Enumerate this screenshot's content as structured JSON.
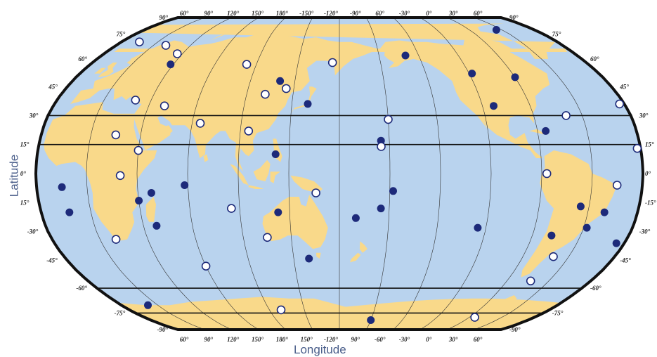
{
  "axes": {
    "xlabel": "Longitude",
    "ylabel": "Latitude",
    "top_ticks": [
      "60°",
      "90°",
      "120°",
      "150°",
      "180°",
      "-150°",
      "-120°",
      "-90°",
      "60°",
      "-30°",
      "0°",
      "30°",
      "60°"
    ],
    "bottom_ticks": [
      "60°",
      "90°",
      "120°",
      "150°",
      "180°",
      "150°",
      "-120°",
      "90°",
      "-60°",
      "-30°",
      "0°",
      "30°",
      "60°"
    ],
    "left_ticks": [
      "90°",
      "75°",
      "60°",
      "45°",
      "30°",
      "15°",
      "0°",
      "15°",
      "-30°",
      "-45°",
      "-60°",
      "-75°",
      "-90°"
    ],
    "right_ticks": [
      "90°",
      "75°",
      "60°",
      "45°",
      "30°",
      "15°",
      "0°",
      "-15°",
      "-30°",
      "-45°",
      "-60°",
      "-75°",
      "-90°"
    ]
  },
  "colors": {
    "ocean": "#b9d3ee",
    "land": "#f9d98a",
    "border": "#111111",
    "filled_marker": "#1d2a7a",
    "open_marker_fill": "#ffffff",
    "open_marker_stroke": "#1d2a7a"
  },
  "projection": "Robinson, Pacific-centered",
  "highlighted_parallels": [
    30,
    15,
    -60,
    -75
  ],
  "markers_filled": [
    {
      "lon": 120,
      "lat": 48
    },
    {
      "lon": 140,
      "lat": 36
    },
    {
      "lon": -150,
      "lat": 62
    },
    {
      "lon": -55,
      "lat": 78
    },
    {
      "lon": -108,
      "lat": 52
    },
    {
      "lon": -80,
      "lat": 50
    },
    {
      "lon": -103,
      "lat": 35
    },
    {
      "lon": -175,
      "lat": 17
    },
    {
      "lon": 122,
      "lat": 10
    },
    {
      "lon": 68,
      "lat": -6
    },
    {
      "lon": -168,
      "lat": -9
    },
    {
      "lon": 123,
      "lat": -20
    },
    {
      "lon": 170,
      "lat": -23
    },
    {
      "lon": -175,
      "lat": -18
    },
    {
      "lon": -115,
      "lat": -28
    },
    {
      "lon": -55,
      "lat": -17
    },
    {
      "lon": -48,
      "lat": -28
    },
    {
      "lon": -68,
      "lat": -32
    },
    {
      "lon": -40,
      "lat": -20
    },
    {
      "lon": -25,
      "lat": -36
    },
    {
      "lon": -5,
      "lat": -7
    },
    {
      "lon": -3,
      "lat": -20
    },
    {
      "lon": 38,
      "lat": 57
    },
    {
      "lon": 48,
      "lat": -10
    },
    {
      "lon": 40,
      "lat": -14
    },
    {
      "lon": 48,
      "lat": -27
    },
    {
      "lon": 2,
      "lat": -70
    },
    {
      "lon": -170,
      "lat": -80
    },
    {
      "lon": 140,
      "lat": -44
    },
    {
      "lon": -75,
      "lat": 22
    }
  ],
  "markers_open": [
    {
      "lon": 20,
      "lat": 68
    },
    {
      "lon": 36,
      "lat": 63
    },
    {
      "lon": 93,
      "lat": 57
    },
    {
      "lon": 112,
      "lat": 41
    },
    {
      "lon": 125,
      "lat": 44
    },
    {
      "lon": 155,
      "lat": 58
    },
    {
      "lon": 75,
      "lat": 26
    },
    {
      "lon": 105,
      "lat": 22
    },
    {
      "lon": -170,
      "lat": 28
    },
    {
      "lon": -175,
      "lat": 14
    },
    {
      "lon": -60,
      "lat": 30
    },
    {
      "lon": -23,
      "lat": 36
    },
    {
      "lon": -22,
      "lat": 13
    },
    {
      "lon": -35,
      "lat": -6
    },
    {
      "lon": -77,
      "lat": 0
    },
    {
      "lon": 95,
      "lat": -18
    },
    {
      "lon": 146,
      "lat": -10
    },
    {
      "lon": 115,
      "lat": -33
    },
    {
      "lon": 70,
      "lat": -48
    },
    {
      "lon": -60,
      "lat": -43
    },
    {
      "lon": -63,
      "lat": -56
    },
    {
      "lon": -75,
      "lat": -78
    },
    {
      "lon": 20,
      "lat": -34
    },
    {
      "lon": 30,
      "lat": -1
    },
    {
      "lon": 30,
      "lat": 38
    },
    {
      "lon": 40,
      "lat": 12
    },
    {
      "lon": 50,
      "lat": 35
    },
    {
      "lon": 110,
      "lat": -73
    },
    {
      "lon": -5,
      "lat": 70
    },
    {
      "lon": 25,
      "lat": 20
    }
  ]
}
